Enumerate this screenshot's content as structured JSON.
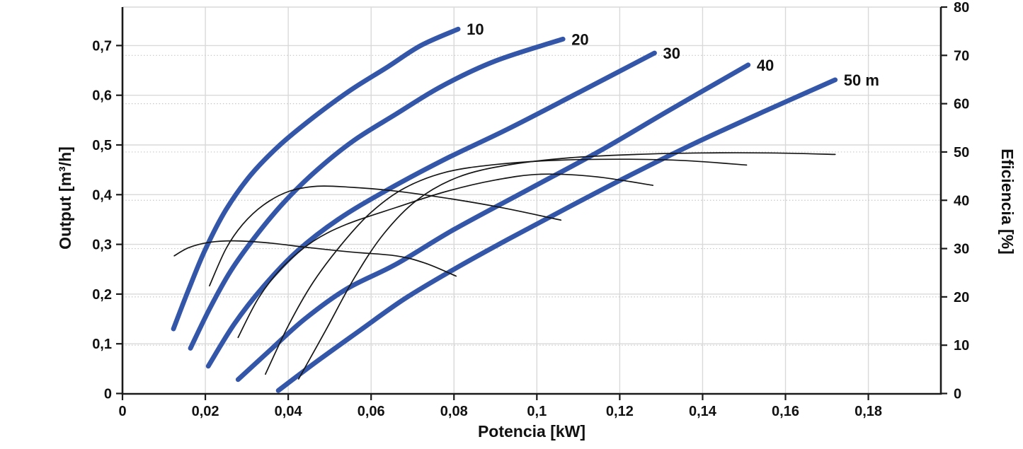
{
  "chart_data": {
    "type": "line",
    "title": "",
    "x_axis": {
      "label": "Potencia [kW]",
      "lim": [
        0,
        0.1975
      ],
      "tick_values": [
        0,
        0.02,
        0.04,
        0.06,
        0.08,
        0.1,
        0.12,
        0.14,
        0.16,
        0.18
      ],
      "tick_labels": [
        "0",
        "0,02",
        "0,04",
        "0,06",
        "0,08",
        "0,1",
        "0,12",
        "0,14",
        "0,16",
        "0,18"
      ]
    },
    "y_left": {
      "label": "Output [m³/h]",
      "lim": [
        0,
        0.7774
      ],
      "tick_values": [
        0,
        0.1,
        0.2,
        0.3,
        0.4,
        0.5,
        0.6,
        0.7
      ],
      "tick_labels": [
        "0",
        "0,1",
        "0,2",
        "0,3",
        "0,4",
        "0,5",
        "0,6",
        "0,7"
      ]
    },
    "y_right": {
      "label": "Eficiencia [%]",
      "lim": [
        0,
        80
      ],
      "tick_values": [
        0,
        10,
        20,
        30,
        40,
        50,
        60,
        70,
        80
      ],
      "tick_labels": [
        "0",
        "10",
        "20",
        "30",
        "40",
        "50",
        "60",
        "70",
        "80"
      ]
    },
    "grid": {
      "vertical_step": 0.02,
      "horizontal_solid_step": 0.1,
      "horizontal_dotted_step": 10
    },
    "legend_position": "none",
    "head_curves": [
      {
        "name": "head-10",
        "label": "10",
        "axis": "left",
        "points": [
          [
            0.0123,
            0.13
          ],
          [
            0.016,
            0.21
          ],
          [
            0.02,
            0.29
          ],
          [
            0.025,
            0.37
          ],
          [
            0.031,
            0.44
          ],
          [
            0.038,
            0.5
          ],
          [
            0.046,
            0.555
          ],
          [
            0.055,
            0.61
          ],
          [
            0.064,
            0.657
          ],
          [
            0.072,
            0.7
          ],
          [
            0.081,
            0.733
          ]
        ]
      },
      {
        "name": "head-20",
        "label": "20",
        "axis": "left",
        "points": [
          [
            0.0164,
            0.091
          ],
          [
            0.021,
            0.17
          ],
          [
            0.026,
            0.245
          ],
          [
            0.032,
            0.315
          ],
          [
            0.039,
            0.385
          ],
          [
            0.047,
            0.45
          ],
          [
            0.056,
            0.51
          ],
          [
            0.066,
            0.562
          ],
          [
            0.077,
            0.618
          ],
          [
            0.09,
            0.669
          ],
          [
            0.1063,
            0.713
          ]
        ]
      },
      {
        "name": "head-30",
        "label": "30",
        "axis": "left",
        "points": [
          [
            0.0207,
            0.055
          ],
          [
            0.027,
            0.14
          ],
          [
            0.034,
            0.215
          ],
          [
            0.042,
            0.285
          ],
          [
            0.052,
            0.35
          ],
          [
            0.064,
            0.41
          ],
          [
            0.078,
            0.472
          ],
          [
            0.093,
            0.532
          ],
          [
            0.11,
            0.605
          ],
          [
            0.1284,
            0.685
          ]
        ]
      },
      {
        "name": "head-40",
        "label": "40",
        "axis": "left",
        "points": [
          [
            0.0279,
            0.028
          ],
          [
            0.036,
            0.09
          ],
          [
            0.044,
            0.15
          ],
          [
            0.054,
            0.21
          ],
          [
            0.066,
            0.26
          ],
          [
            0.08,
            0.33
          ],
          [
            0.0985,
            0.413
          ],
          [
            0.115,
            0.487
          ],
          [
            0.132,
            0.57
          ],
          [
            0.151,
            0.661
          ]
        ]
      },
      {
        "name": "head-50",
        "label": "50 m",
        "axis": "left",
        "points": [
          [
            0.0376,
            0.006
          ],
          [
            0.047,
            0.065
          ],
          [
            0.057,
            0.125
          ],
          [
            0.068,
            0.19
          ],
          [
            0.08,
            0.25
          ],
          [
            0.093,
            0.31
          ],
          [
            0.107,
            0.372
          ],
          [
            0.122,
            0.437
          ],
          [
            0.138,
            0.503
          ],
          [
            0.155,
            0.568
          ],
          [
            0.172,
            0.631
          ]
        ]
      }
    ],
    "efficiency_curves": [
      {
        "name": "eff-10",
        "head": "10",
        "axis": "right",
        "points": [
          [
            0.0125,
            28.5
          ],
          [
            0.016,
            30.2
          ],
          [
            0.021,
            31.3
          ],
          [
            0.027,
            31.6
          ],
          [
            0.035,
            31.2
          ],
          [
            0.045,
            30.2
          ],
          [
            0.055,
            29.3
          ],
          [
            0.066,
            28.5
          ],
          [
            0.073,
            27.0
          ],
          [
            0.0805,
            24.3
          ]
        ]
      },
      {
        "name": "eff-20",
        "head": "20",
        "axis": "right",
        "points": [
          [
            0.021,
            22.3
          ],
          [
            0.025,
            30
          ],
          [
            0.029,
            35
          ],
          [
            0.034,
            39
          ],
          [
            0.04,
            41.8
          ],
          [
            0.047,
            42.9
          ],
          [
            0.055,
            42.7
          ],
          [
            0.066,
            41.9
          ],
          [
            0.08,
            40.2
          ],
          [
            0.092,
            38.4
          ],
          [
            0.1058,
            35.9
          ]
        ]
      },
      {
        "name": "eff-30",
        "head": "30",
        "axis": "right",
        "points": [
          [
            0.0279,
            11.6
          ],
          [
            0.033,
            20
          ],
          [
            0.039,
            26.5
          ],
          [
            0.046,
            31.5
          ],
          [
            0.054,
            35
          ],
          [
            0.066,
            38.5
          ],
          [
            0.078,
            41.8
          ],
          [
            0.09,
            44.2
          ],
          [
            0.101,
            45.4
          ],
          [
            0.114,
            44.9
          ],
          [
            0.128,
            43.1
          ]
        ]
      },
      {
        "name": "eff-40",
        "head": "40",
        "axis": "right",
        "points": [
          [
            0.0345,
            4
          ],
          [
            0.04,
            14
          ],
          [
            0.046,
            23
          ],
          [
            0.053,
            31
          ],
          [
            0.06,
            37.5
          ],
          [
            0.068,
            42.5
          ],
          [
            0.078,
            45.8
          ],
          [
            0.09,
            47.4
          ],
          [
            0.105,
            48.3
          ],
          [
            0.122,
            48.5
          ],
          [
            0.136,
            48.2
          ],
          [
            0.1506,
            47.3
          ]
        ]
      },
      {
        "name": "eff-50",
        "head": "50",
        "axis": "right",
        "points": [
          [
            0.0425,
            3
          ],
          [
            0.049,
            13
          ],
          [
            0.056,
            24
          ],
          [
            0.063,
            33
          ],
          [
            0.071,
            40
          ],
          [
            0.081,
            44.8
          ],
          [
            0.093,
            47.3
          ],
          [
            0.108,
            48.8
          ],
          [
            0.124,
            49.5
          ],
          [
            0.14,
            49.8
          ],
          [
            0.156,
            49.8
          ],
          [
            0.172,
            49.5
          ]
        ]
      }
    ],
    "colors": {
      "head_curve": "#3456A8",
      "efficiency_curve": "#161616",
      "grid_solid": "#d9d9d9",
      "grid_dotted": "#c8c8c8",
      "axis": "#1a1a1a",
      "text": "#111111",
      "background": "#ffffff"
    }
  }
}
